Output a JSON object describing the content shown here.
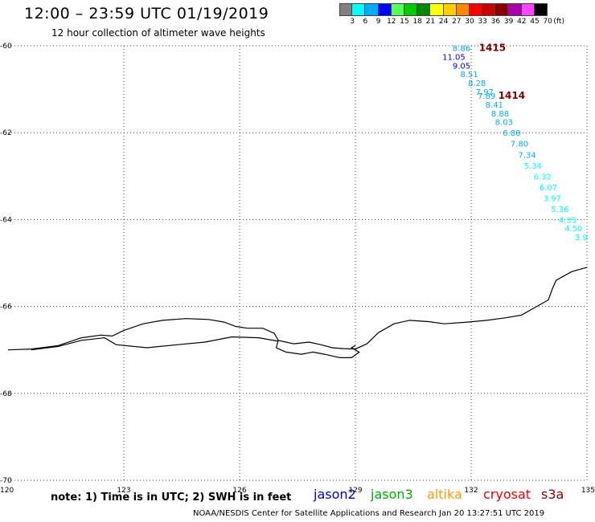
{
  "header": {
    "title": "12:00 – 23:59 UTC 01/19/2019",
    "subtitle": "12 hour collection of altimeter wave heights"
  },
  "legend": {
    "unit": "(ft)",
    "bins": [
      {
        "label": "3",
        "color": "#808080"
      },
      {
        "label": "6",
        "color": "#00ffff"
      },
      {
        "label": "9",
        "color": "#00aaff"
      },
      {
        "label": "12",
        "color": "#0000ff"
      },
      {
        "label": "15",
        "color": "#55ff55"
      },
      {
        "label": "18",
        "color": "#00cc00"
      },
      {
        "label": "21",
        "color": "#008800"
      },
      {
        "label": "24",
        "color": "#ffff00"
      },
      {
        "label": "27",
        "color": "#ffcc00"
      },
      {
        "label": "30",
        "color": "#ff8800"
      },
      {
        "label": "33",
        "color": "#ff0000"
      },
      {
        "label": "36",
        "color": "#cc0000"
      },
      {
        "label": "39",
        "color": "#880000"
      },
      {
        "label": "42",
        "color": "#aa00aa"
      },
      {
        "label": "45",
        "color": "#ff44ff"
      },
      {
        "label": "70",
        "color": "#000000"
      }
    ]
  },
  "map": {
    "lon_ticks": [
      "120",
      "123",
      "126",
      "129",
      "132",
      "135"
    ],
    "lat_ticks": [
      "-60",
      "-62",
      "-64",
      "-66",
      "-68",
      "-70"
    ],
    "pass_labels": [
      {
        "label": "1415",
        "color": "#800000",
        "lon": 132.55,
        "lat": -60.05
      },
      {
        "label": "1414",
        "color": "#800000",
        "lon": 133.05,
        "lat": -61.15
      }
    ],
    "tracks": [
      {
        "name": "pass-1415",
        "points": [
          {
            "lon": 131.75,
            "lat": -60.05,
            "swh": "8.86",
            "color": "#00aaff"
          },
          {
            "lon": 131.55,
            "lat": -60.25,
            "swh": "11.05",
            "color": "#0000ff"
          },
          {
            "lon": 131.75,
            "lat": -60.45,
            "swh": "9.05",
            "color": "#0000ff"
          },
          {
            "lon": 131.95,
            "lat": -60.65,
            "swh": "8.51",
            "color": "#00aaff"
          },
          {
            "lon": 132.15,
            "lat": -60.85,
            "swh": "8.28",
            "color": "#00aaff"
          },
          {
            "lon": 132.35,
            "lat": -61.05,
            "swh": "7.97",
            "color": "#00aaff"
          }
        ]
      },
      {
        "name": "pass-1414",
        "points": [
          {
            "lon": 132.4,
            "lat": -61.15,
            "swh": "7.89",
            "color": "#00aaff"
          },
          {
            "lon": 132.6,
            "lat": -61.35,
            "swh": "8.41",
            "color": "#00aaff"
          },
          {
            "lon": 132.75,
            "lat": -61.55,
            "swh": "8.88",
            "color": "#00aaff"
          },
          {
            "lon": 132.85,
            "lat": -61.75,
            "swh": "8.03",
            "color": "#00aaff"
          },
          {
            "lon": 133.05,
            "lat": -62.0,
            "swh": "6.88",
            "color": "#00aaff"
          },
          {
            "lon": 133.25,
            "lat": -62.25,
            "swh": "7.80",
            "color": "#00aaff"
          },
          {
            "lon": 133.45,
            "lat": -62.5,
            "swh": "7.34",
            "color": "#00aaff"
          },
          {
            "lon": 133.6,
            "lat": -62.75,
            "swh": "5.34",
            "color": "#00ffff"
          },
          {
            "lon": 133.85,
            "lat": -63.0,
            "swh": "6.32",
            "color": "#00ffff"
          },
          {
            "lon": 134.0,
            "lat": -63.25,
            "swh": "6.07",
            "color": "#00ffff"
          },
          {
            "lon": 134.1,
            "lat": -63.5,
            "swh": "3.97",
            "color": "#00ffff"
          },
          {
            "lon": 134.3,
            "lat": -63.75,
            "swh": "5.36",
            "color": "#00ffff"
          },
          {
            "lon": 134.5,
            "lat": -64.0,
            "swh": "4.35",
            "color": "#00ffff"
          },
          {
            "lon": 134.65,
            "lat": -64.2,
            "swh": "4.50",
            "color": "#00ffff"
          },
          {
            "lon": 134.85,
            "lat": -64.4,
            "swh": "3.9",
            "color": "#00ffff"
          }
        ]
      }
    ],
    "coastline": [
      [
        120.0,
        -67.0
      ],
      [
        120.6,
        -66.98
      ],
      [
        121.3,
        -66.9
      ],
      [
        121.9,
        -66.72
      ],
      [
        122.4,
        -66.66
      ],
      [
        122.7,
        -66.68
      ],
      [
        123.0,
        -66.55
      ],
      [
        123.5,
        -66.4
      ],
      [
        124.0,
        -66.32
      ],
      [
        124.6,
        -66.28
      ],
      [
        125.2,
        -66.3
      ],
      [
        125.6,
        -66.36
      ],
      [
        125.9,
        -66.46
      ],
      [
        126.2,
        -66.5
      ],
      [
        126.6,
        -66.5
      ],
      [
        126.9,
        -66.62
      ],
      [
        127.0,
        -66.78
      ],
      [
        127.4,
        -66.86
      ],
      [
        127.8,
        -66.82
      ],
      [
        128.1,
        -66.88
      ],
      [
        128.4,
        -66.95
      ],
      [
        128.7,
        -66.97
      ],
      [
        129.0,
        -66.98
      ],
      [
        129.3,
        -66.86
      ],
      [
        129.6,
        -66.6
      ],
      [
        130.0,
        -66.4
      ],
      [
        130.4,
        -66.32
      ],
      [
        130.9,
        -66.35
      ],
      [
        131.3,
        -66.4
      ],
      [
        131.9,
        -66.36
      ],
      [
        132.4,
        -66.32
      ],
      [
        132.9,
        -66.26
      ],
      [
        133.3,
        -66.2
      ],
      [
        133.7,
        -66.0
      ],
      [
        134.0,
        -65.85
      ],
      [
        134.1,
        -65.6
      ],
      [
        134.2,
        -65.4
      ],
      [
        134.6,
        -65.2
      ],
      [
        135.0,
        -65.1
      ]
    ],
    "coastline_inner": [
      [
        120.6,
        -67.0
      ],
      [
        121.3,
        -66.92
      ],
      [
        121.9,
        -66.78
      ],
      [
        122.5,
        -66.72
      ],
      [
        122.8,
        -66.88
      ],
      [
        123.6,
        -66.95
      ],
      [
        124.4,
        -66.88
      ],
      [
        125.1,
        -66.82
      ],
      [
        125.8,
        -66.7
      ],
      [
        126.5,
        -66.72
      ],
      [
        127.0,
        -66.8
      ]
    ],
    "coastline_bay": [
      [
        127.0,
        -66.78
      ],
      [
        126.95,
        -66.95
      ],
      [
        127.2,
        -67.05
      ],
      [
        127.6,
        -67.1
      ],
      [
        127.9,
        -67.05
      ],
      [
        128.2,
        -67.1
      ],
      [
        128.6,
        -67.18
      ],
      [
        128.9,
        -67.18
      ],
      [
        129.1,
        -67.05
      ],
      [
        128.9,
        -66.95
      ],
      [
        129.0,
        -66.9
      ]
    ]
  },
  "footer": {
    "note": "note: 1) Time is in UTC; 2) SWH is in feet",
    "satellites": [
      {
        "label": "jason2",
        "color": "#0000cc"
      },
      {
        "label": "jason3",
        "color": "#00aa00"
      },
      {
        "label": "altika",
        "color": "#ff9900"
      },
      {
        "label": "cryosat",
        "color": "#ee0000"
      },
      {
        "label": "s3a",
        "color": "#880000"
      }
    ],
    "credit": "NOAA/NESDIS Center for Satellite Applications and Research    Jan 20 13:27:51 UTC 2019"
  }
}
